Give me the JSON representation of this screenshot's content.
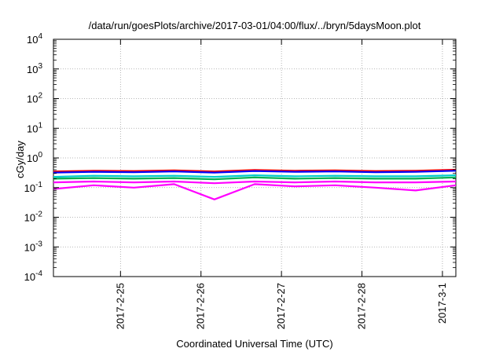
{
  "chart_data": {
    "type": "line",
    "title": "/data/run/goesPlots/archive/2017-03-01/04:00/flux/../bryn/5daysMoon.plot",
    "xlabel": "Coordinated Universal Time (UTC)",
    "ylabel": "cGy/day",
    "yscale": "log",
    "ylim": [
      0.0001,
      10000
    ],
    "xlim": [
      "2017-02-24T04:00",
      "2017-03-01T04:00"
    ],
    "grid": true,
    "legend": "none",
    "y_ticks": [
      {
        "mantissa": "10",
        "exp": "-4"
      },
      {
        "mantissa": "10",
        "exp": "-3"
      },
      {
        "mantissa": "10",
        "exp": "-2"
      },
      {
        "mantissa": "10",
        "exp": "-1"
      },
      {
        "mantissa": "10",
        "exp": "0"
      },
      {
        "mantissa": "10",
        "exp": "1"
      },
      {
        "mantissa": "10",
        "exp": "2"
      },
      {
        "mantissa": "10",
        "exp": "3"
      },
      {
        "mantissa": "10",
        "exp": "4"
      }
    ],
    "x_ticks": [
      {
        "label": "2017-2-25",
        "at": "2017-02-25T00:00"
      },
      {
        "label": "2017-2-26",
        "at": "2017-02-26T00:00"
      },
      {
        "label": "2017-2-27",
        "at": "2017-02-27T00:00"
      },
      {
        "label": "2017-2-28",
        "at": "2017-02-28T00:00"
      },
      {
        "label": "2017-3-1",
        "at": "2017-03-01T00:00"
      }
    ],
    "x": [
      "2017-02-24T04:00",
      "2017-02-24T16:00",
      "2017-02-25T04:00",
      "2017-02-25T16:00",
      "2017-02-26T04:00",
      "2017-02-26T16:00",
      "2017-02-27T04:00",
      "2017-02-27T16:00",
      "2017-02-28T04:00",
      "2017-02-28T16:00",
      "2017-03-01T04:00"
    ],
    "series": [
      {
        "color": "#ff00ff",
        "values": [
          0.09,
          0.12,
          0.1,
          0.13,
          0.04,
          0.13,
          0.11,
          0.12,
          0.1,
          0.08,
          0.12
        ]
      },
      {
        "color": "#ff0000",
        "values": [
          0.35,
          0.37,
          0.36,
          0.38,
          0.35,
          0.39,
          0.37,
          0.38,
          0.36,
          0.37,
          0.4
        ]
      },
      {
        "color": "#0000ff",
        "values": [
          0.32,
          0.34,
          0.33,
          0.35,
          0.32,
          0.36,
          0.34,
          0.35,
          0.33,
          0.34,
          0.37
        ]
      },
      {
        "color": "#00cccc",
        "values": [
          0.23,
          0.25,
          0.24,
          0.25,
          0.23,
          0.26,
          0.24,
          0.25,
          0.24,
          0.24,
          0.26
        ]
      },
      {
        "color": "#00b050",
        "values": [
          0.2,
          0.21,
          0.2,
          0.21,
          0.19,
          0.22,
          0.2,
          0.21,
          0.2,
          0.2,
          0.22
        ]
      },
      {
        "color": "#ff00ff",
        "values": [
          0.15,
          0.16,
          0.15,
          0.16,
          0.14,
          0.16,
          0.15,
          0.16,
          0.15,
          0.15,
          0.16
        ]
      }
    ]
  }
}
